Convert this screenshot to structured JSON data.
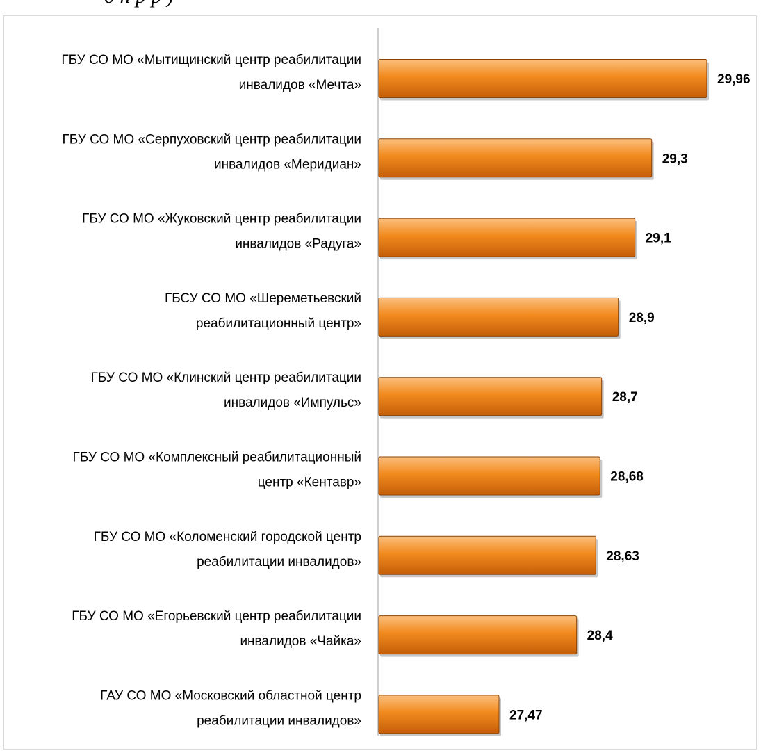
{
  "page": {
    "top_caption": "д н р р ) "
  },
  "chart_data": {
    "type": "bar",
    "orientation": "horizontal",
    "categories": [
      [
        "ГБУ СО МО «Мытищинский центр реабилитации",
        "инвалидов «Мечта»"
      ],
      [
        "ГБУ СО МО «Серпуховский центр реабилитации",
        "инвалидов «Меридиан»"
      ],
      [
        "ГБУ СО МО «Жуковский центр реабилитации",
        "инвалидов «Радуга»"
      ],
      [
        "ГБСУ СО МО «Шереметьевский",
        "реабилитационный центр»"
      ],
      [
        "ГБУ СО МО «Клинский центр реабилитации",
        "инвалидов «Импульс»"
      ],
      [
        "ГБУ СО МО «Комплексный реабилитационный",
        "центр «Кентавр»"
      ],
      [
        "ГБУ СО МО «Коломенский городской центр",
        "реабилитации инвалидов»"
      ],
      [
        "ГБУ СО МО «Егорьевский центр реабилитации",
        "инвалидов «Чайка»"
      ],
      [
        "ГАУ СО МО «Московский областной центр",
        "реабилитации инвалидов»"
      ]
    ],
    "values": [
      29.96,
      29.3,
      29.1,
      28.9,
      28.7,
      28.68,
      28.63,
      28.4,
      27.47
    ],
    "value_labels": [
      "29,96",
      "29,3",
      "29,1",
      "28,9",
      "28,7",
      "28,68",
      "28,63",
      "28,4",
      "27,47"
    ],
    "xlim": [
      26.5,
      30.4
    ],
    "grid": false,
    "legend": "none",
    "colors": {
      "bar_light": "#fbbf7d",
      "bar_mid": "#f28a1e",
      "bar_dark": "#c45e08",
      "bar_edge": "#8a4306",
      "axis": "#bfbfbf"
    }
  }
}
